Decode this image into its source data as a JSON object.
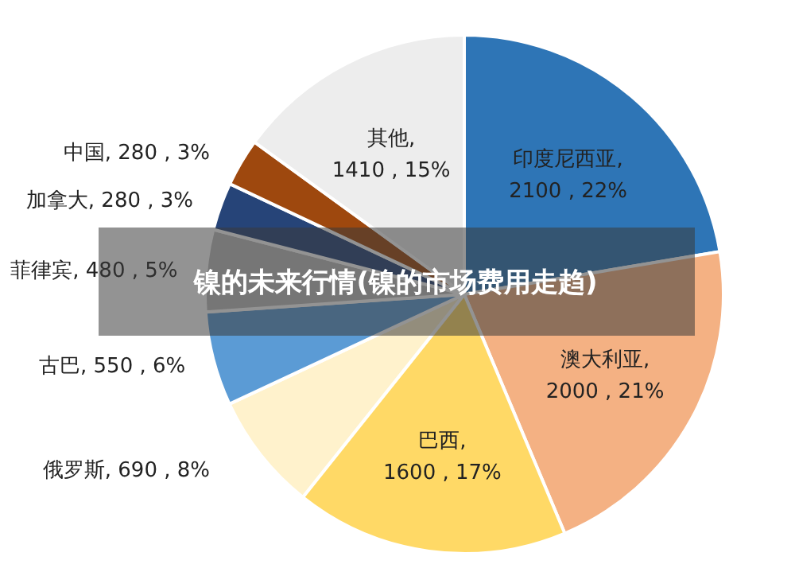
{
  "chart_data": {
    "type": "pie",
    "title": "镍的未来行情(镍的市场费用走趋)",
    "categories": [
      "印度尼西亚",
      "澳大利亚",
      "巴西",
      "俄罗斯",
      "古巴",
      "菲律宾",
      "加拿大",
      "中国",
      "其他"
    ],
    "values": [
      2100,
      2000,
      1600,
      690,
      550,
      480,
      280,
      280,
      1410
    ],
    "value_labels": [
      ", 2100 , 22%",
      ", 2000 , 21%",
      ", 1600 , 17%",
      ", 690 , 8%",
      ", 550 , 6%",
      ", 480 , 5%",
      ", 280 , 3%",
      ", 280 , 3%",
      ", 1410 , 15%"
    ],
    "colors": [
      "#2e75b6",
      "#f4b183",
      "#ffd966",
      "#fff2cc",
      "#5b9bd5",
      "#bfbfbf",
      "#264478",
      "#9e480e",
      "#ededed"
    ]
  }
}
